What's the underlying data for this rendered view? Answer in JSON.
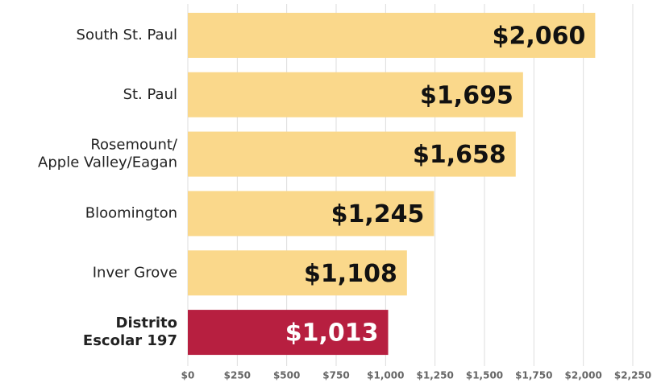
{
  "chart_data": {
    "type": "hbar",
    "categories": [
      "South St. Paul",
      "St. Paul",
      "Rosemount/\nApple Valley/Eagan",
      "Bloomington",
      "Inver Grove",
      "Distrito\nEscolar 197"
    ],
    "values": [
      2060,
      1695,
      1658,
      1245,
      1108,
      1013
    ],
    "value_labels": [
      "$2,060",
      "$1,695",
      "$1,658",
      "$1,245",
      "$1,108",
      "$1,013"
    ],
    "colors": [
      "#fad88b",
      "#fad88b",
      "#fad88b",
      "#fad88b",
      "#fad88b",
      "#b71f40"
    ],
    "xlim": [
      0,
      2250
    ],
    "xticks": [
      {
        "value": 0,
        "label": "$0"
      },
      {
        "value": 250,
        "label": "$250"
      },
      {
        "value": 500,
        "label": "$500"
      },
      {
        "value": 750,
        "label": "$750"
      },
      {
        "value": 1000,
        "label": "$1,000"
      },
      {
        "value": 1250,
        "label": "$1,250"
      },
      {
        "value": 1500,
        "label": "$1,500"
      },
      {
        "value": 1750,
        "label": "$1,750"
      },
      {
        "value": 2000,
        "label": "$2,000"
      },
      {
        "value": 2250,
        "label": "$2,250"
      }
    ],
    "grid": true
  }
}
